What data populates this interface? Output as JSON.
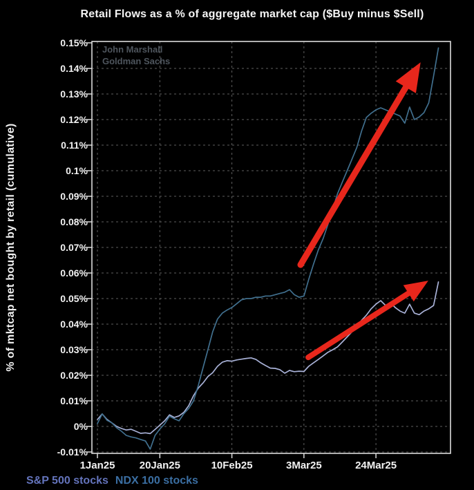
{
  "title": "Retail Flows as a % of aggregate market cap ($Buy minus $Sell)",
  "watermark": {
    "line1": "John Marshall",
    "line2": "Goldman Sachs"
  },
  "legend": [
    {
      "label": "S&P 500 stocks",
      "color": "#6474bc"
    },
    {
      "label": "NDX 100 stocks",
      "color": "#3b6fa3"
    }
  ],
  "colors": {
    "background": "#000000",
    "plot_border": "#dcdcdc",
    "gridline": "#5f5f5f",
    "tick_text": "#f2f2f2",
    "watermark": "#4e555d",
    "arrow_red": "#e8271c",
    "sp500_line": "#a9b2d8",
    "ndx_line": "#41708f"
  },
  "chart_data": {
    "type": "line",
    "title": "Retail Flows as a % of aggregate market cap ($Buy minus $Sell)",
    "xlabel": "",
    "ylabel": "% of mktcap net bought by retail (cumulative)",
    "x_unit": "business days since 1Jan25",
    "x_range": [
      0,
      73.5
    ],
    "ylim": [
      -0.01,
      0.15
    ],
    "grid": true,
    "legend_position": "bottom-left",
    "x_axis": {
      "tick_labels": [
        "1Jan25",
        "20Jan25",
        "10Feb25",
        "3Mar25",
        "24Mar25"
      ],
      "tick_day_index": [
        0,
        13,
        28,
        43,
        58
      ]
    },
    "y_axis": {
      "ticks": [
        {
          "v": 0.15,
          "label": "0.15%"
        },
        {
          "v": 0.14,
          "label": "0.14%"
        },
        {
          "v": 0.13,
          "label": "0.13%"
        },
        {
          "v": 0.12,
          "label": "0.12%"
        },
        {
          "v": 0.11,
          "label": "0.11%"
        },
        {
          "v": 0.1,
          "label": "0.1%"
        },
        {
          "v": 0.09,
          "label": "0.09%"
        },
        {
          "v": 0.08,
          "label": "0.08%"
        },
        {
          "v": 0.07,
          "label": "0.07%"
        },
        {
          "v": 0.06,
          "label": "0.06%"
        },
        {
          "v": 0.05,
          "label": "0.05%"
        },
        {
          "v": 0.04,
          "label": "0.04%"
        },
        {
          "v": 0.03,
          "label": "0.03%"
        },
        {
          "v": 0.02,
          "label": "0.02%"
        },
        {
          "v": 0.01,
          "label": "0.01%"
        },
        {
          "v": 0.0,
          "label": "0%"
        },
        {
          "v": -0.01,
          "label": "-0.01%"
        }
      ]
    },
    "series": [
      {
        "name": "S&P 500 stocks",
        "color": "#a9b2d8",
        "values_pct": [
          0.0027,
          0.0049,
          0.0027,
          0.0014,
          0.0,
          -0.0008,
          -0.0014,
          -0.0011,
          -0.0019,
          -0.0027,
          -0.0025,
          -0.0028,
          -0.0012,
          0.0005,
          0.0022,
          0.0045,
          0.0035,
          0.0041,
          0.0055,
          0.0081,
          0.012,
          0.015,
          0.017,
          0.0195,
          0.021,
          0.0235,
          0.0251,
          0.0257,
          0.0255,
          0.026,
          0.0263,
          0.0266,
          0.0268,
          0.0262,
          0.0249,
          0.0238,
          0.0228,
          0.0227,
          0.0222,
          0.0208,
          0.0219,
          0.0214,
          0.0216,
          0.0215,
          0.0235,
          0.0249,
          0.0262,
          0.0276,
          0.029,
          0.03,
          0.0311,
          0.033,
          0.035,
          0.037,
          0.039,
          0.0415,
          0.0435,
          0.046,
          0.0478,
          0.0492,
          0.0473,
          0.0484,
          0.0465,
          0.0451,
          0.0443,
          0.0478,
          0.0443,
          0.0437,
          0.0451,
          0.046,
          0.0473,
          0.0565
        ]
      },
      {
        "name": "NDX 100 stocks",
        "color": "#41708f",
        "values_pct": [
          0.0011,
          0.0049,
          0.0024,
          0.0014,
          -0.0005,
          -0.0019,
          -0.0035,
          -0.0041,
          -0.0045,
          -0.0051,
          -0.0057,
          -0.0089,
          -0.0035,
          -0.001,
          0.001,
          0.004,
          0.003,
          0.0022,
          0.005,
          0.007,
          0.01,
          0.016,
          0.023,
          0.03,
          0.037,
          0.042,
          0.0443,
          0.0455,
          0.0465,
          0.048,
          0.0495,
          0.05,
          0.05,
          0.0505,
          0.0505,
          0.051,
          0.051,
          0.0515,
          0.052,
          0.0525,
          0.0535,
          0.0515,
          0.0505,
          0.051,
          0.0575,
          0.0635,
          0.069,
          0.0735,
          0.079,
          0.085,
          0.091,
          0.0955,
          0.1,
          0.1045,
          0.109,
          0.1155,
          0.1208,
          0.1225,
          0.1238,
          0.1246,
          0.1238,
          0.123,
          0.1222,
          0.1214,
          0.1186,
          0.1249,
          0.12,
          0.121,
          0.1227,
          0.1265,
          0.137,
          0.148
        ]
      }
    ],
    "annotations": {
      "arrows": [
        {
          "name": "upper-red-arrow",
          "color": "#e8271c",
          "from": {
            "day": 42.3,
            "value_pct": 0.0632
          },
          "to": {
            "day": 67.3,
            "value_pct": 0.1424
          }
        },
        {
          "name": "lower-red-arrow",
          "color": "#e8271c",
          "from": {
            "day": 43.9,
            "value_pct": 0.027
          },
          "to": {
            "day": 68.9,
            "value_pct": 0.057
          }
        }
      ]
    }
  }
}
